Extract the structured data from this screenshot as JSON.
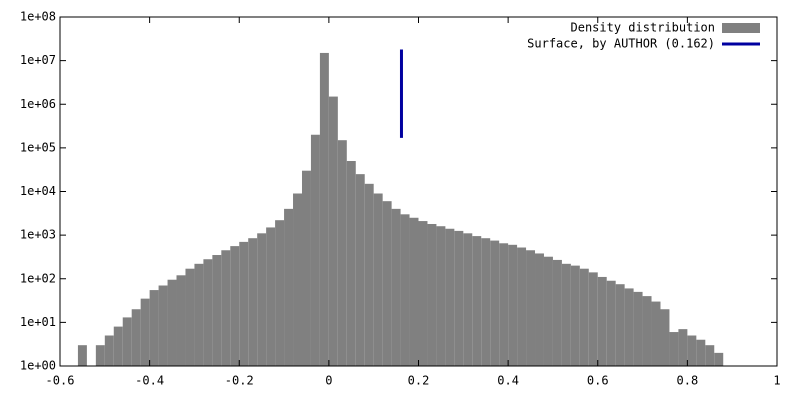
{
  "chart_data": {
    "type": "histogram",
    "logy": true,
    "legend": "top-right",
    "bins": [
      -0.56,
      -0.54,
      -0.52,
      -0.5,
      -0.48,
      -0.46,
      -0.44,
      -0.42,
      -0.4,
      -0.38,
      -0.36,
      -0.34,
      -0.32,
      -0.3,
      -0.28,
      -0.26,
      -0.24,
      -0.22,
      -0.2,
      -0.18,
      -0.16,
      -0.14,
      -0.12,
      -0.1,
      -0.08,
      -0.06,
      -0.04,
      -0.02,
      0,
      0.02,
      0.04,
      0.06,
      0.08,
      0.1,
      0.12,
      0.14,
      0.16,
      0.18,
      0.2,
      0.22,
      0.24,
      0.26,
      0.28,
      0.3,
      0.32,
      0.34,
      0.36,
      0.38,
      0.4,
      0.42,
      0.44,
      0.46,
      0.48,
      0.5,
      0.52,
      0.54,
      0.56,
      0.58,
      0.6,
      0.62,
      0.64,
      0.66,
      0.68,
      0.7,
      0.72,
      0.74,
      0.76,
      0.78,
      0.8,
      0.82,
      0.84,
      0.86,
      0.88
    ],
    "series": [
      {
        "name": "Density distribution",
        "color": "#808080",
        "values": [
          3,
          null,
          3,
          5,
          8,
          13,
          20,
          35,
          55,
          70,
          95,
          120,
          170,
          220,
          280,
          350,
          450,
          560,
          700,
          850,
          1100,
          1500,
          2200,
          4000,
          9000,
          30000,
          200000,
          15000000,
          1500000,
          150000,
          50000,
          25000,
          15000,
          9000,
          6000,
          4000,
          3000,
          2500,
          2100,
          1800,
          1600,
          1400,
          1250,
          1100,
          950,
          850,
          750,
          650,
          600,
          520,
          450,
          380,
          320,
          270,
          220,
          200,
          170,
          140,
          110,
          90,
          75,
          60,
          50,
          40,
          30,
          20,
          6,
          7,
          5,
          4,
          3,
          2
        ]
      }
    ],
    "reference_line": {
      "name": "Surface, by AUTHOR (0.162)",
      "color": "#0000a0",
      "x": 0.162,
      "y": [
        170000,
        18000000
      ]
    },
    "xlim": [
      -0.6,
      1
    ],
    "xticks": [
      -0.6,
      -0.4,
      -0.2,
      0,
      0.2,
      0.4,
      0.6,
      0.8,
      1
    ],
    "ylim": [
      1,
      100000000
    ],
    "yticks": [
      {
        "value": 1,
        "label": "1e+00"
      },
      {
        "value": 10,
        "label": "1e+01"
      },
      {
        "value": 100,
        "label": "1e+02"
      },
      {
        "value": 1000,
        "label": "1e+03"
      },
      {
        "value": 10000,
        "label": "1e+04"
      },
      {
        "value": 100000,
        "label": "1e+05"
      },
      {
        "value": 1000000,
        "label": "1e+06"
      },
      {
        "value": 10000000,
        "label": "1e+07"
      },
      {
        "value": 100000000,
        "label": "1e+08"
      }
    ]
  }
}
